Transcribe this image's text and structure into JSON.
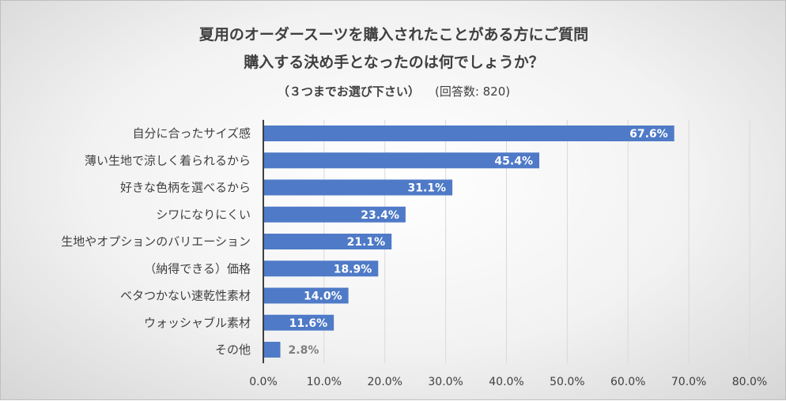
{
  "chart_data": {
    "type": "bar",
    "orientation": "horizontal",
    "title_lines": [
      "夏用のオーダースーツを購入されたことがある方にご質問",
      "購入する決め手となったのは何でしょうか？"
    ],
    "subtitle": "（３つまでお選び下さい）",
    "note": "(回答数: 820)",
    "categories": [
      "自分に合ったサイズ感",
      "薄い生地で涼しく着られるから",
      "好きな色柄を選べるから",
      "シワになりにくい",
      "生地やオプションのバリエーション",
      "（納得できる）価格",
      "ベタつかない速乾性素材",
      "ウォッシャブル素材",
      "その他"
    ],
    "values": [
      67.6,
      45.4,
      31.1,
      23.4,
      21.1,
      18.9,
      14.0,
      11.6,
      2.8
    ],
    "value_labels": [
      "67.6%",
      "45.4%",
      "31.1%",
      "23.4%",
      "21.1%",
      "18.9%",
      "14.0%",
      "11.6%",
      "2.8%"
    ],
    "xlim": [
      0,
      80
    ],
    "xticks": [
      "0.0%",
      "10.0%",
      "20.0%",
      "30.0%",
      "40.0%",
      "50.0%",
      "60.0%",
      "70.0%",
      "80.0%"
    ],
    "grid": true,
    "colors": {
      "bar": "#4f7ac7",
      "label_inside": "#ffffff",
      "label_outside": "#7f7f7f",
      "grid": "#d9d9d9",
      "axis": "#404040"
    }
  }
}
